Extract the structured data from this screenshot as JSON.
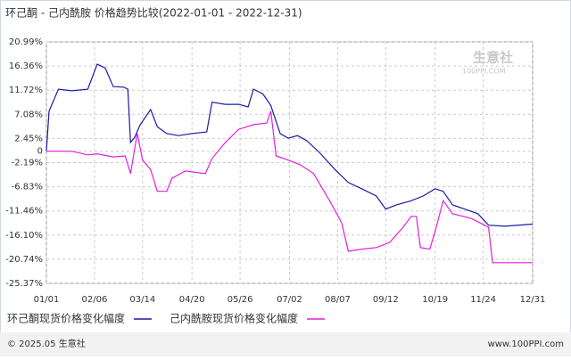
{
  "chart_data": {
    "type": "line",
    "title": "环己酮 - 己内酰胺 价格趋势比较(2022-01-01 - 2022-12-31)",
    "watermark": "生意社",
    "watermark_sub": "100PPI.COM",
    "footer_left": "© 2025.05 生意社",
    "footer_right": "www.100PPI.com",
    "grid": true,
    "ylim": [
      -25.37,
      20.99
    ],
    "yticks": [
      {
        "value": 20.99,
        "label": "20.99%"
      },
      {
        "value": 16.36,
        "label": "16.36%"
      },
      {
        "value": 11.72,
        "label": "11.72%"
      },
      {
        "value": 7.08,
        "label": "7.08%"
      },
      {
        "value": 2.45,
        "label": "2.45%"
      },
      0,
      {
        "value": -2.19,
        "label": "-2.19%"
      },
      {
        "value": -6.83,
        "label": "-6.83%"
      },
      {
        "value": -11.46,
        "label": "-11.46%"
      },
      {
        "value": -16.1,
        "label": "-16.10%"
      },
      {
        "value": -20.74,
        "label": "-20.74%"
      },
      {
        "value": -25.37,
        "label": "-25.37%"
      }
    ],
    "xticks": [
      "01/01",
      "02/06",
      "03/14",
      "04/20",
      "05/26",
      "07/02",
      "08/07",
      "09/12",
      "10/19",
      "11/24",
      "12/31"
    ],
    "series": [
      {
        "name": "环己酮现货价格变化幅度",
        "color": "#1a1aa6",
        "x": [
          "01/01",
          "01/03",
          "01/10",
          "01/20",
          "02/01",
          "02/08",
          "02/14",
          "02/20",
          "02/28",
          "03/03",
          "03/05",
          "03/08",
          "03/12",
          "03/20",
          "03/25",
          "04/01",
          "04/10",
          "04/20",
          "05/01",
          "05/05",
          "05/15",
          "05/25",
          "06/01",
          "06/05",
          "06/12",
          "06/18",
          "06/25",
          "07/01",
          "07/08",
          "07/15",
          "07/25",
          "08/05",
          "08/15",
          "08/25",
          "09/05",
          "09/12",
          "09/20",
          "09/30",
          "10/10",
          "10/19",
          "10/25",
          "11/01",
          "11/10",
          "11/20",
          "11/28",
          "12/10",
          "12/31"
        ],
        "values": [
          0,
          7.7,
          11.9,
          11.6,
          11.9,
          16.7,
          16,
          12.4,
          12.3,
          11.9,
          1.7,
          2.6,
          5,
          8,
          4.7,
          3.4,
          3,
          3.4,
          3.7,
          9.4,
          9,
          9,
          8.5,
          11.9,
          11,
          8.8,
          3.4,
          2.5,
          3,
          2,
          -0.4,
          -3.5,
          -6,
          -7.2,
          -8.6,
          -11.1,
          -10.3,
          -9.6,
          -8.6,
          -7.2,
          -7.7,
          -10.3,
          -11.1,
          -12,
          -14.2,
          -14.4,
          -14
        ]
      },
      {
        "name": "己内酰胺现货价格变化幅度",
        "color": "#e020e0",
        "x": [
          "01/01",
          "01/20",
          "02/01",
          "02/08",
          "02/20",
          "03/01",
          "03/05",
          "03/10",
          "03/14",
          "03/20",
          "03/25",
          "04/01",
          "04/05",
          "04/15",
          "04/30",
          "05/05",
          "05/15",
          "05/25",
          "06/05",
          "06/15",
          "06/18",
          "06/22",
          "07/01",
          "07/10",
          "07/20",
          "08/01",
          "08/10",
          "08/15",
          "08/25",
          "09/05",
          "09/15",
          "09/25",
          "10/01",
          "10/05",
          "10/08",
          "10/15",
          "10/19",
          "10/25",
          "11/01",
          "11/15",
          "11/28",
          "12/01",
          "12/31"
        ],
        "values": [
          0,
          0,
          -0.7,
          -0.5,
          -1.1,
          -0.9,
          -4.3,
          3.4,
          -1.7,
          -3.5,
          -7.7,
          -7.7,
          -5.2,
          -3.8,
          -4.3,
          -1.4,
          1.7,
          4.2,
          5.1,
          5.4,
          7.7,
          -0.9,
          -1.7,
          -2.6,
          -4.3,
          -9.5,
          -13.7,
          -19.2,
          -18.8,
          -18.5,
          -17.5,
          -14.6,
          -12.5,
          -12.5,
          -18.5,
          -18.8,
          -15.4,
          -9.5,
          -12,
          -12.9,
          -14.6,
          -21.4,
          -21.4
        ]
      }
    ]
  }
}
